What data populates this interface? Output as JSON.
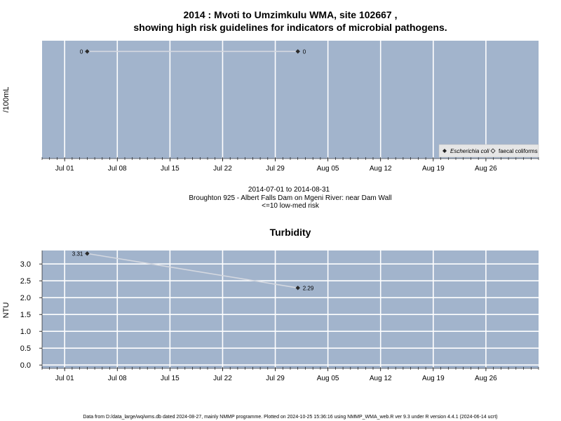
{
  "header": {
    "title_line1": "2014 : Mvoti to Umzimkulu WMA, site 102667 ,",
    "title_line2": "showing high risk guidelines for indicators of microbial pathogens."
  },
  "chart_data": [
    {
      "type": "line",
      "title": "",
      "ylabel": "/100mL",
      "xlabel_lines": [
        "2014-07-01 to 2014-08-31",
        "Broughton 925 - Albert Falls Dam on Mgeni River: near Dam Wall",
        "<=10 low-med risk"
      ],
      "x_ticks": [
        "Jul 01",
        "Jul 08",
        "Jul 15",
        "Jul 22",
        "Jul 29",
        "Aug 05",
        "Aug 12",
        "Aug 19",
        "Aug 26"
      ],
      "xlim": [
        "2014-06-28",
        "2014-09-02"
      ],
      "ylim": [
        -0.5,
        0.05
      ],
      "grid": true,
      "legend_position": "bottom-right",
      "legend": [
        {
          "name": "Escherichia coli",
          "marker": "filled-diamond"
        },
        {
          "name": "faecal coliforms",
          "marker": "open-diamond"
        }
      ],
      "series": [
        {
          "name": "Escherichia coli",
          "points": [
            {
              "x": "2014-07-04",
              "y": 0,
              "label": "0"
            },
            {
              "x": "2014-08-01",
              "y": 0,
              "label": "0"
            }
          ]
        }
      ]
    },
    {
      "type": "line",
      "title": "Turbidity",
      "ylabel": "NTU",
      "x_ticks": [
        "Jul 01",
        "Jul 08",
        "Jul 15",
        "Jul 22",
        "Jul 29",
        "Aug 05",
        "Aug 12",
        "Aug 19",
        "Aug 26"
      ],
      "y_ticks": [
        "0.0",
        "0.5",
        "1.0",
        "1.5",
        "2.0",
        "2.5",
        "3.0"
      ],
      "xlim": [
        "2014-06-28",
        "2014-09-02"
      ],
      "ylim": [
        -0.1,
        3.4
      ],
      "grid": true,
      "series": [
        {
          "name": "",
          "points": [
            {
              "x": "2014-07-04",
              "y": 3.31,
              "label": "3.31"
            },
            {
              "x": "2014-08-01",
              "y": 2.29,
              "label": "2.29"
            }
          ]
        }
      ]
    }
  ],
  "footer": {
    "note": "Data from D:/data_large/wq/wms.db dated 2024-08-27, mainly NMMP programme. Plotted on 2024-10-25 15:36:16 using NMMP_WMA_web.R ver 9.3 under R version 4.4.1 (2024-06-14 ucrt)"
  },
  "colors": {
    "panel": "#a2b4cc",
    "grid": "#ffffff",
    "line": "#d4d8e0",
    "marker": "#2a2a2a"
  }
}
